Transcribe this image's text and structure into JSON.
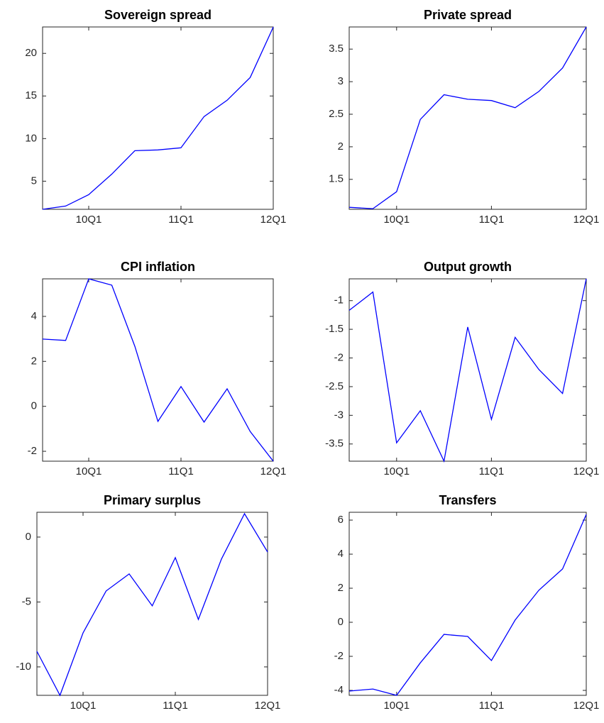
{
  "chart_data": [
    {
      "type": "line",
      "title": "Sovereign spread",
      "categories": [
        null,
        null,
        "10Q1",
        null,
        null,
        null,
        "11Q1",
        null,
        null,
        null,
        "12Q1"
      ],
      "values": [
        1.7,
        2.08,
        3.42,
        5.83,
        8.58,
        8.67,
        8.92,
        12.58,
        14.5,
        17.17,
        23.08
      ],
      "color": "#0000ff",
      "ylim": [
        1.7,
        23.1
      ],
      "yticks": [
        5,
        10,
        15,
        20
      ]
    },
    {
      "type": "line",
      "title": "Private spread",
      "categories": [
        null,
        null,
        "10Q1",
        null,
        null,
        null,
        "11Q1",
        null,
        null,
        null,
        "12Q1"
      ],
      "values": [
        1.07,
        1.05,
        1.31,
        2.42,
        2.8,
        2.73,
        2.71,
        2.6,
        2.85,
        3.21,
        3.84
      ],
      "color": "#0000ff",
      "ylim": [
        1.04,
        3.84
      ],
      "yticks": [
        1.5,
        2,
        2.5,
        3,
        3.5
      ]
    },
    {
      "type": "line",
      "title": "CPI inflation",
      "categories": [
        null,
        null,
        "10Q1",
        null,
        null,
        null,
        "11Q1",
        null,
        null,
        null,
        "12Q1"
      ],
      "values": [
        2.99,
        2.93,
        5.67,
        5.39,
        2.67,
        -0.67,
        0.88,
        -0.7,
        0.78,
        -1.12,
        -2.44
      ],
      "color": "#0000ff",
      "ylim": [
        -2.44,
        5.67
      ],
      "yticks": [
        -2,
        0,
        2,
        4
      ]
    },
    {
      "type": "line",
      "title": "Output growth",
      "categories": [
        null,
        null,
        "10Q1",
        null,
        null,
        null,
        "11Q1",
        null,
        null,
        null,
        "12Q1"
      ],
      "values": [
        -1.17,
        -0.85,
        -3.48,
        -2.92,
        -3.8,
        -1.46,
        -3.07,
        -1.64,
        -2.2,
        -2.62,
        -0.62
      ],
      "color": "#0000ff",
      "ylim": [
        -3.8,
        -0.62
      ],
      "yticks": [
        -3.5,
        -3,
        -2.5,
        -2,
        -1.5,
        -1
      ]
    },
    {
      "type": "line",
      "title": "Primary surplus",
      "categories": [
        null,
        null,
        "10Q1",
        null,
        null,
        null,
        "11Q1",
        null,
        null,
        null,
        "12Q1"
      ],
      "values": [
        -8.8,
        -12.19,
        -7.38,
        -4.15,
        -2.84,
        -5.3,
        -1.58,
        -6.34,
        -1.69,
        1.8,
        -1.15
      ],
      "color": "#0000ff",
      "ylim": [
        -12.19,
        1.91
      ],
      "yticks": [
        -10,
        -5,
        0
      ]
    },
    {
      "type": "line",
      "title": "Transfers",
      "categories": [
        null,
        null,
        "10Q1",
        null,
        null,
        null,
        "11Q1",
        null,
        null,
        null,
        "12Q1"
      ],
      "values": [
        -4.04,
        -3.92,
        -4.29,
        -2.38,
        -0.71,
        -0.83,
        -2.25,
        0.13,
        1.88,
        3.13,
        6.33
      ],
      "color": "#0000ff",
      "ylim": [
        -4.29,
        6.46
      ],
      "yticks": [
        -4,
        -2,
        0,
        2,
        4,
        6
      ]
    }
  ]
}
